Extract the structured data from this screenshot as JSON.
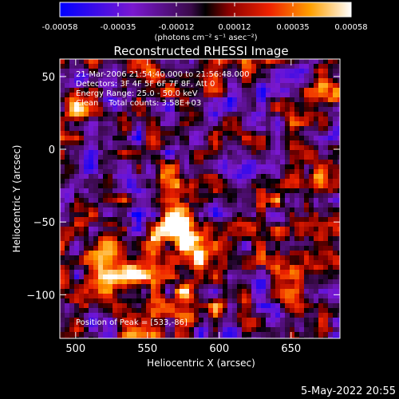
{
  "colorbar": {
    "ticks": [
      "-0.00058",
      "-0.00035",
      "-0.00012",
      "0.00012",
      "0.00035",
      "0.00058"
    ],
    "unit_label": "(photons cm⁻² s⁻¹ asec⁻²)"
  },
  "plot": {
    "title": "Reconstructed RHESSI Image",
    "info_lines": [
      "21-Mar-2006 21:54:40.000 to 21:56:48.000",
      "Detectors: 3F 4F 5F 6F 7F 8F, Att 0",
      "Energy Range: 25.0 - 50.0 keV",
      "Clean    Total counts: 3.58E+03"
    ],
    "peak_label": "Position of Peak = [533,-86]"
  },
  "footer": {
    "date": "5-May-2022 20:55"
  },
  "chart_data": {
    "type": "heatmap",
    "title": "Reconstructed RHESSI Image",
    "xlabel": "Heliocentric X (arcsec)",
    "ylabel": "Heliocentric Y (arcsec)",
    "xlim": [
      489,
      684
    ],
    "ylim": [
      -130,
      62
    ],
    "xticks": [
      500,
      550,
      600,
      650
    ],
    "yticks": [
      50,
      0,
      -50,
      -100
    ],
    "colorbar_range": [
      -0.00058,
      0.00058
    ],
    "colormap": "rhessi-blue-purple-black-red-yellow-white",
    "peak_position": [
      533,
      -86
    ],
    "bright_regions": [
      {
        "x": 567,
        "y": -55,
        "level": 0.85
      },
      {
        "x": 535,
        "y": -87,
        "level": 1.0
      },
      {
        "x": 577,
        "y": -105,
        "level": 0.8
      },
      {
        "x": 568,
        "y": -20,
        "level": 0.55
      },
      {
        "x": 662,
        "y": -22,
        "level": 0.65
      },
      {
        "x": 656,
        "y": -75,
        "level": 0.6
      },
      {
        "x": 520,
        "y": -60,
        "level": 0.55
      },
      {
        "x": 585,
        "y": -70,
        "level": 0.6
      },
      {
        "x": 540,
        "y": 50,
        "level": 0.45
      },
      {
        "x": 600,
        "y": 55,
        "level": 0.45
      },
      {
        "x": 672,
        "y": 40,
        "level": 0.5
      },
      {
        "x": 500,
        "y": 28,
        "level": 0.4
      },
      {
        "x": 553,
        "y": -120,
        "level": 0.55
      },
      {
        "x": 507,
        "y": -100,
        "level": 0.45
      },
      {
        "x": 625,
        "y": -45,
        "level": 0.45
      }
    ]
  }
}
